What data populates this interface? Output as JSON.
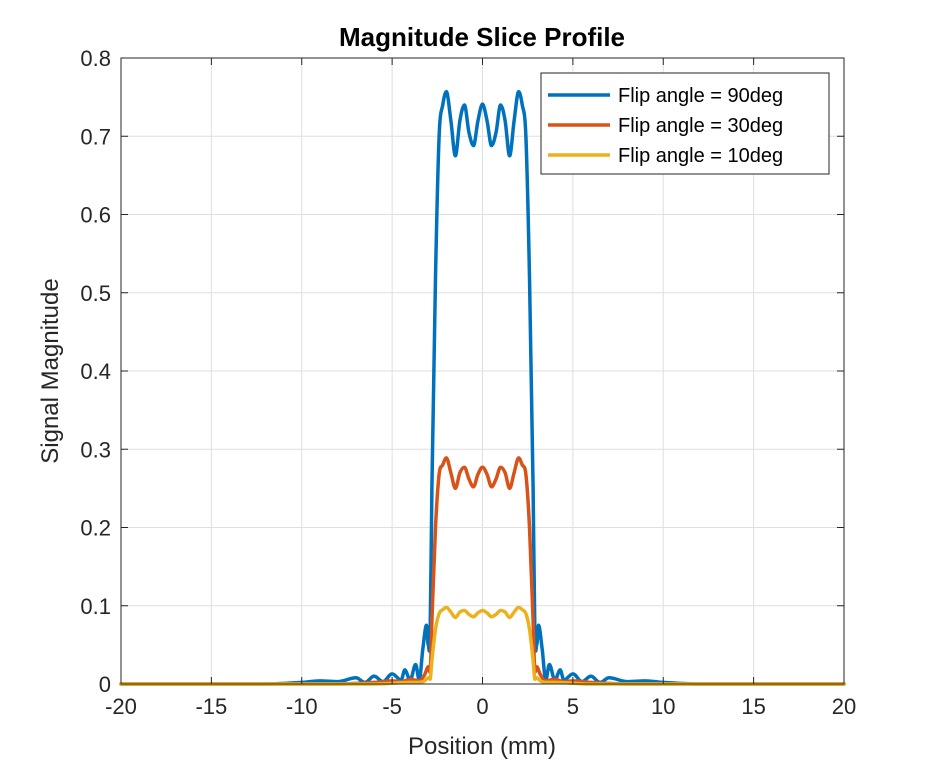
{
  "chart_data": {
    "type": "line",
    "title": "Magnitude Slice Profile",
    "xlabel": "Position (mm)",
    "ylabel": "Signal Magnitude",
    "xlim": [
      -20,
      20
    ],
    "ylim": [
      0,
      0.8
    ],
    "xticks": [
      "-20",
      "-15",
      "-10",
      "-5",
      "0",
      "5",
      "10",
      "15",
      "20"
    ],
    "yticks": [
      "0",
      "0.1",
      "0.2",
      "0.3",
      "0.4",
      "0.5",
      "0.6",
      "0.7",
      "0.8"
    ],
    "grid": true,
    "legend_position": "top-right",
    "series": [
      {
        "name": "Flip angle = 90deg",
        "color": "#0072BD",
        "x": [
          -20,
          -12,
          -10,
          -9,
          -8,
          -7,
          -6.5,
          -6,
          -5.5,
          -5,
          -4.5,
          -4.3,
          -4,
          -3.7,
          -3.5,
          -3.3,
          -3.1,
          -3,
          -2.9,
          -2.8,
          -2.6,
          -2.4,
          -2.2,
          -2,
          -1.75,
          -1.5,
          -1.25,
          -1,
          -0.75,
          -0.5,
          -0.25,
          0,
          0.25,
          0.5,
          0.75,
          1,
          1.25,
          1.5,
          1.75,
          2,
          2.2,
          2.4,
          2.6,
          2.8,
          2.9,
          3,
          3.1,
          3.3,
          3.5,
          3.7,
          4,
          4.3,
          4.5,
          5,
          5.5,
          6,
          6.5,
          7,
          8,
          9,
          10,
          12,
          20
        ],
        "y": [
          0,
          0,
          0.002,
          0.004,
          0.003,
          0.008,
          0.002,
          0.01,
          0.003,
          0.013,
          0.005,
          0.018,
          0.005,
          0.025,
          0.005,
          0.045,
          0.075,
          0.05,
          0.06,
          0.25,
          0.52,
          0.7,
          0.74,
          0.757,
          0.72,
          0.675,
          0.72,
          0.74,
          0.705,
          0.688,
          0.72,
          0.741,
          0.72,
          0.688,
          0.705,
          0.74,
          0.72,
          0.675,
          0.72,
          0.757,
          0.74,
          0.7,
          0.52,
          0.25,
          0.06,
          0.05,
          0.075,
          0.045,
          0.005,
          0.025,
          0.005,
          0.018,
          0.005,
          0.013,
          0.003,
          0.01,
          0.002,
          0.008,
          0.003,
          0.004,
          0.002,
          0,
          0
        ]
      },
      {
        "name": "Flip angle = 30deg",
        "color": "#D95319",
        "x": [
          -20,
          -8,
          -6,
          -5,
          -4.5,
          -4,
          -3.5,
          -3.2,
          -3,
          -2.9,
          -2.8,
          -2.6,
          -2.4,
          -2.2,
          -2,
          -1.75,
          -1.5,
          -1.25,
          -1,
          -0.75,
          -0.5,
          -0.25,
          0,
          0.25,
          0.5,
          0.75,
          1,
          1.25,
          1.5,
          1.75,
          2,
          2.2,
          2.4,
          2.6,
          2.8,
          2.9,
          3,
          3.2,
          3.5,
          4,
          4.5,
          5,
          6,
          8,
          20
        ],
        "y": [
          0,
          0,
          0.002,
          0.004,
          0.003,
          0.006,
          0.004,
          0.012,
          0.022,
          0.015,
          0.08,
          0.2,
          0.268,
          0.28,
          0.289,
          0.27,
          0.25,
          0.27,
          0.277,
          0.262,
          0.252,
          0.268,
          0.277,
          0.268,
          0.252,
          0.262,
          0.277,
          0.27,
          0.25,
          0.27,
          0.289,
          0.28,
          0.268,
          0.2,
          0.08,
          0.015,
          0.022,
          0.012,
          0.004,
          0.006,
          0.003,
          0.004,
          0.002,
          0,
          0
        ]
      },
      {
        "name": "Flip angle = 10deg",
        "color": "#EDB120",
        "x": [
          -20,
          -6,
          -4,
          -3.5,
          -3.2,
          -3,
          -2.9,
          -2.8,
          -2.6,
          -2.4,
          -2.2,
          -2,
          -1.75,
          -1.5,
          -1.25,
          -1,
          -0.75,
          -0.5,
          -0.25,
          0,
          0.25,
          0.5,
          0.75,
          1,
          1.25,
          1.5,
          1.75,
          2,
          2.2,
          2.4,
          2.6,
          2.8,
          2.9,
          3,
          3.2,
          3.5,
          4,
          6,
          20
        ],
        "y": [
          0,
          0,
          0.002,
          0.002,
          0.004,
          0.008,
          0.006,
          0.03,
          0.07,
          0.09,
          0.095,
          0.098,
          0.092,
          0.085,
          0.092,
          0.094,
          0.089,
          0.086,
          0.091,
          0.094,
          0.091,
          0.086,
          0.089,
          0.094,
          0.092,
          0.085,
          0.092,
          0.098,
          0.095,
          0.09,
          0.07,
          0.03,
          0.006,
          0.008,
          0.004,
          0.002,
          0.002,
          0,
          0
        ]
      }
    ]
  }
}
